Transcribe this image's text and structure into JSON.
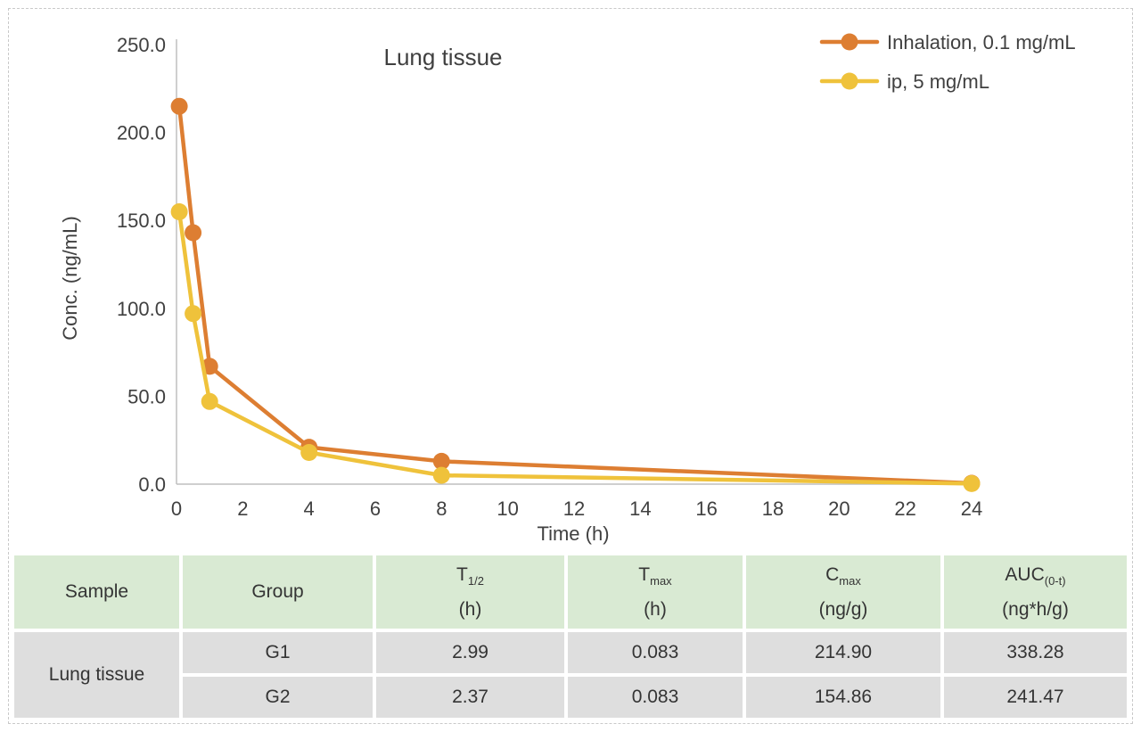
{
  "chart_data": {
    "type": "line",
    "title": "Lung tissue",
    "xlabel": "Time (h)",
    "ylabel": "Conc. (ng/mL)",
    "xlim": [
      0,
      24
    ],
    "ylim": [
      0,
      250
    ],
    "x_ticks": [
      0,
      2,
      4,
      6,
      8,
      10,
      12,
      14,
      16,
      18,
      20,
      22,
      24
    ],
    "y_ticks": [
      "0.0",
      "50.0",
      "100.0",
      "150.0",
      "200.0",
      "250.0"
    ],
    "grid": false,
    "legend_position": "top-right",
    "axis_color": "#bfbfbf",
    "text_color": "#404040",
    "series": [
      {
        "name": "Inhalation, 0.1 mg/mL",
        "color": "#dd7e32",
        "x": [
          0.083,
          0.5,
          1,
          4,
          8,
          24
        ],
        "y": [
          214.9,
          143,
          67,
          21,
          13,
          0.5
        ]
      },
      {
        "name": "ip, 5 mg/mL",
        "color": "#efc23b",
        "x": [
          0.083,
          0.5,
          1,
          4,
          8,
          24
        ],
        "y": [
          154.9,
          97,
          47,
          18,
          5,
          0.3
        ]
      }
    ]
  },
  "table": {
    "header": [
      {
        "main": "Sample",
        "sub": "",
        "unit": ""
      },
      {
        "main": "Group",
        "sub": "",
        "unit": ""
      },
      {
        "main": "T",
        "sub": "1/2",
        "unit": "(h)"
      },
      {
        "main": "T",
        "sub": "max",
        "unit": "(h)"
      },
      {
        "main": "C",
        "sub": "max",
        "unit": "(ng/g)"
      },
      {
        "main": "AUC",
        "sub": "(0-t)",
        "unit": "(ng*h/g)"
      }
    ],
    "sample_label": "Lung tissue",
    "rows": [
      {
        "group": "G1",
        "t_half": "2.99",
        "t_max": "0.083",
        "c_max": "214.90",
        "auc": "338.28"
      },
      {
        "group": "G2",
        "t_half": "2.37",
        "t_max": "0.083",
        "c_max": "154.86",
        "auc": "241.47"
      }
    ],
    "header_bg": "#d9ead3",
    "row_bg": "#dedede"
  }
}
